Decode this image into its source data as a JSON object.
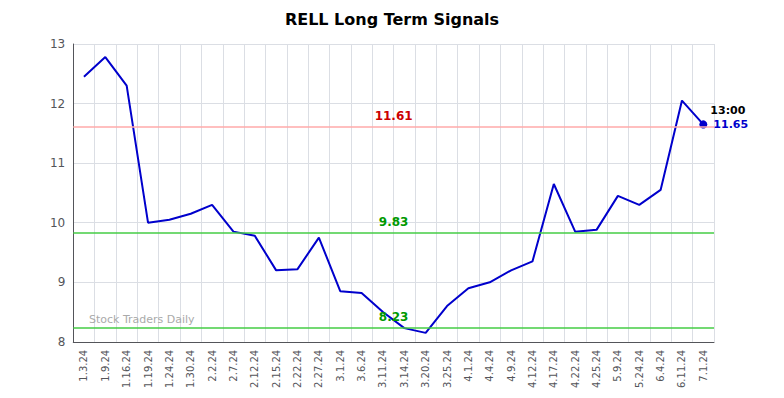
{
  "chart_data": {
    "type": "line",
    "title": "RELL Long Term Signals",
    "categories": [
      "1.3.24",
      "1.9.24",
      "1.16.24",
      "1.19.24",
      "1.24.24",
      "1.30.24",
      "2.2.24",
      "2.7.24",
      "2.12.24",
      "2.15.24",
      "2.22.24",
      "2.27.24",
      "3.1.24",
      "3.6.24",
      "3.11.24",
      "3.14.24",
      "3.20.24",
      "3.25.24",
      "4.1.24",
      "4.4.24",
      "4.9.24",
      "4.12.24",
      "4.17.24",
      "4.22.24",
      "4.25.24",
      "5.9.24",
      "5.24.24",
      "6.4.24",
      "6.11.24",
      "7.1.24"
    ],
    "values": [
      12.45,
      12.78,
      12.3,
      10.0,
      10.05,
      10.15,
      10.3,
      9.85,
      9.78,
      9.2,
      9.22,
      9.75,
      8.85,
      8.82,
      8.5,
      8.23,
      8.15,
      8.6,
      8.9,
      9.0,
      9.2,
      9.35,
      10.65,
      9.85,
      9.88,
      10.45,
      10.3,
      10.55,
      12.05,
      11.65
    ],
    "value_labels": [
      null,
      null,
      null,
      null,
      null,
      null,
      null,
      null,
      null,
      null,
      null,
      null,
      null,
      null,
      null,
      null,
      null,
      null,
      null,
      null,
      null,
      null,
      null,
      null,
      null,
      null,
      null,
      null,
      null,
      "11.65"
    ],
    "color": "#0000cc",
    "ylim": [
      8,
      13
    ],
    "yticks": [
      8,
      9,
      10,
      11,
      12,
      13
    ],
    "grid": true,
    "hlines": [
      {
        "value": 11.61,
        "label": "11.61",
        "color": "#ffaaaa",
        "label_color": "#cc0000"
      },
      {
        "value": 9.83,
        "label": "9.83",
        "color": "#44cc44",
        "label_color": "#009900"
      },
      {
        "value": 8.23,
        "label": "8.23",
        "color": "#44cc44",
        "label_color": "#009900"
      }
    ],
    "annotations": [
      {
        "text": "13:00",
        "x": "7.1.24",
        "y": 11.65,
        "color": "#000000"
      },
      {
        "text": "Stock Traders Daily",
        "y": 8.23,
        "color": "#aaaaaa"
      }
    ]
  }
}
